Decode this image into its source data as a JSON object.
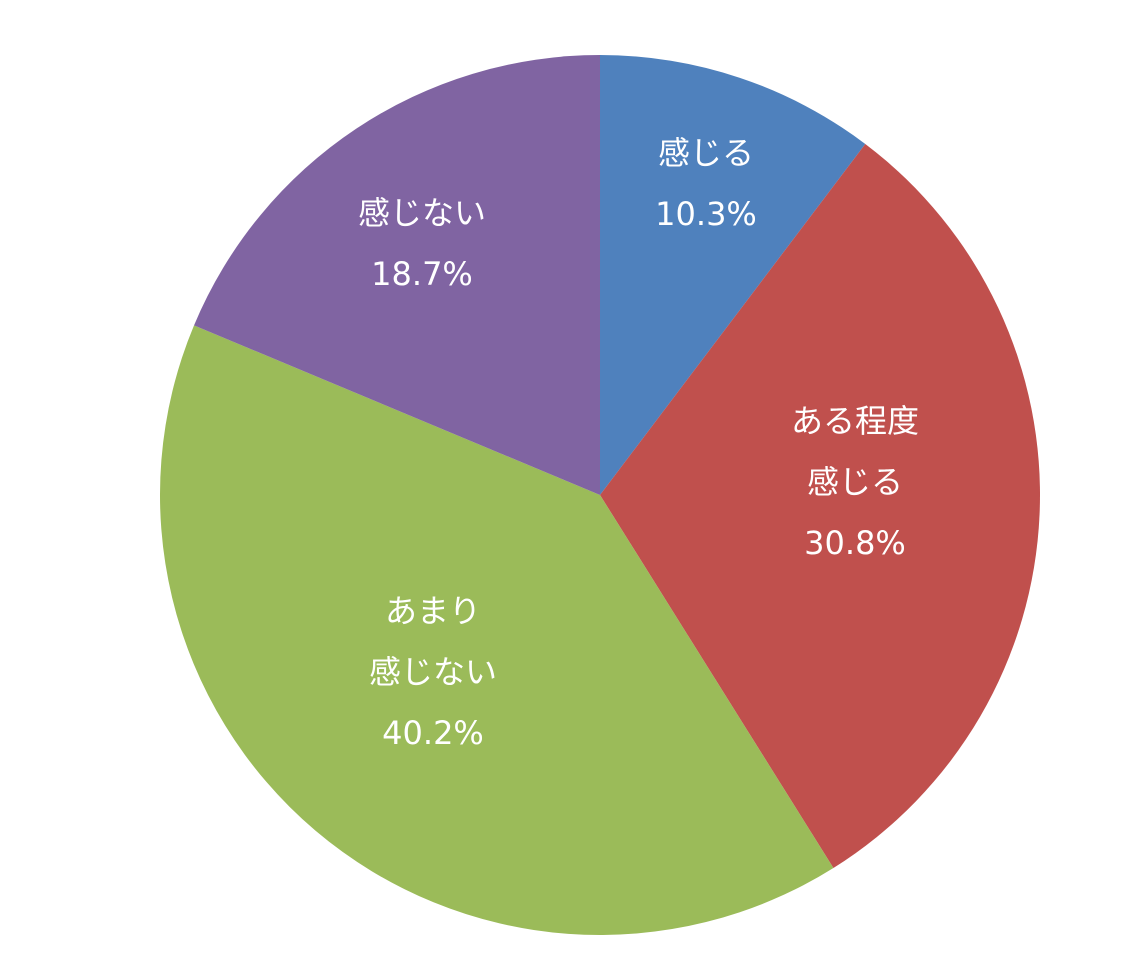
{
  "chart_data": {
    "type": "pie",
    "start_angle_deg": 0,
    "direction": "clockwise",
    "legend": "none",
    "slices": [
      {
        "label_lines": [
          "感じる"
        ],
        "value_text": "10.3%",
        "value": 10.3,
        "color": "#4F81BD"
      },
      {
        "label_lines": [
          "ある程度",
          "感じる"
        ],
        "value_text": "30.8%",
        "value": 30.8,
        "color": "#C0504D"
      },
      {
        "label_lines": [
          "あまり",
          "感じない"
        ],
        "value_text": "40.2%",
        "value": 40.2,
        "color": "#9BBB59"
      },
      {
        "label_lines": [
          "感じない"
        ],
        "value_text": "18.7%",
        "value": 18.7,
        "color": "#8064A2"
      }
    ]
  }
}
